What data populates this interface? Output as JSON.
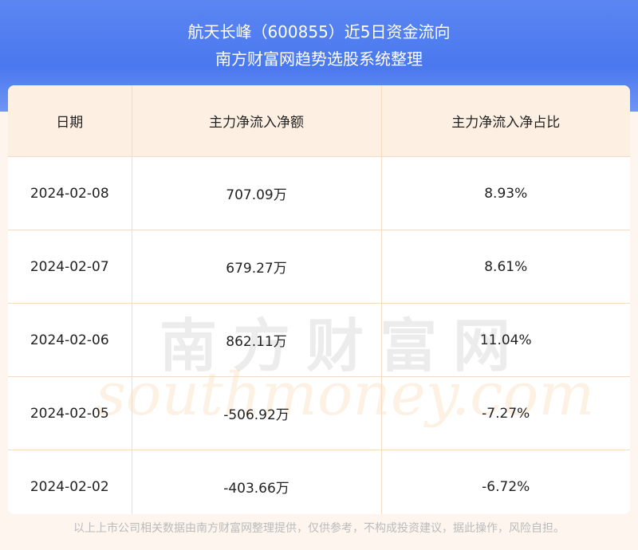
{
  "header": {
    "title": "航天长峰（600855）近5日资金流向",
    "subtitle": "南方财富网趋势选股系统整理"
  },
  "table": {
    "columns": [
      "日期",
      "主力净流入净额",
      "主力净流入净占比"
    ],
    "rows": [
      [
        "2024-02-08",
        "707.09万",
        "8.93%"
      ],
      [
        "2024-02-07",
        "679.27万",
        "8.61%"
      ],
      [
        "2024-02-06",
        "862.11万",
        "11.04%"
      ],
      [
        "2024-02-05",
        "-506.92万",
        "-7.27%"
      ],
      [
        "2024-02-02",
        "-403.66万",
        "-6.72%"
      ]
    ]
  },
  "watermark": {
    "name": "南方财富网",
    "site": "southmoney.com"
  },
  "footer": "以上上市公司相关数据由南方财富网整理提供，仅供参考，不构成投资建议，据此操作，风险自担。"
}
